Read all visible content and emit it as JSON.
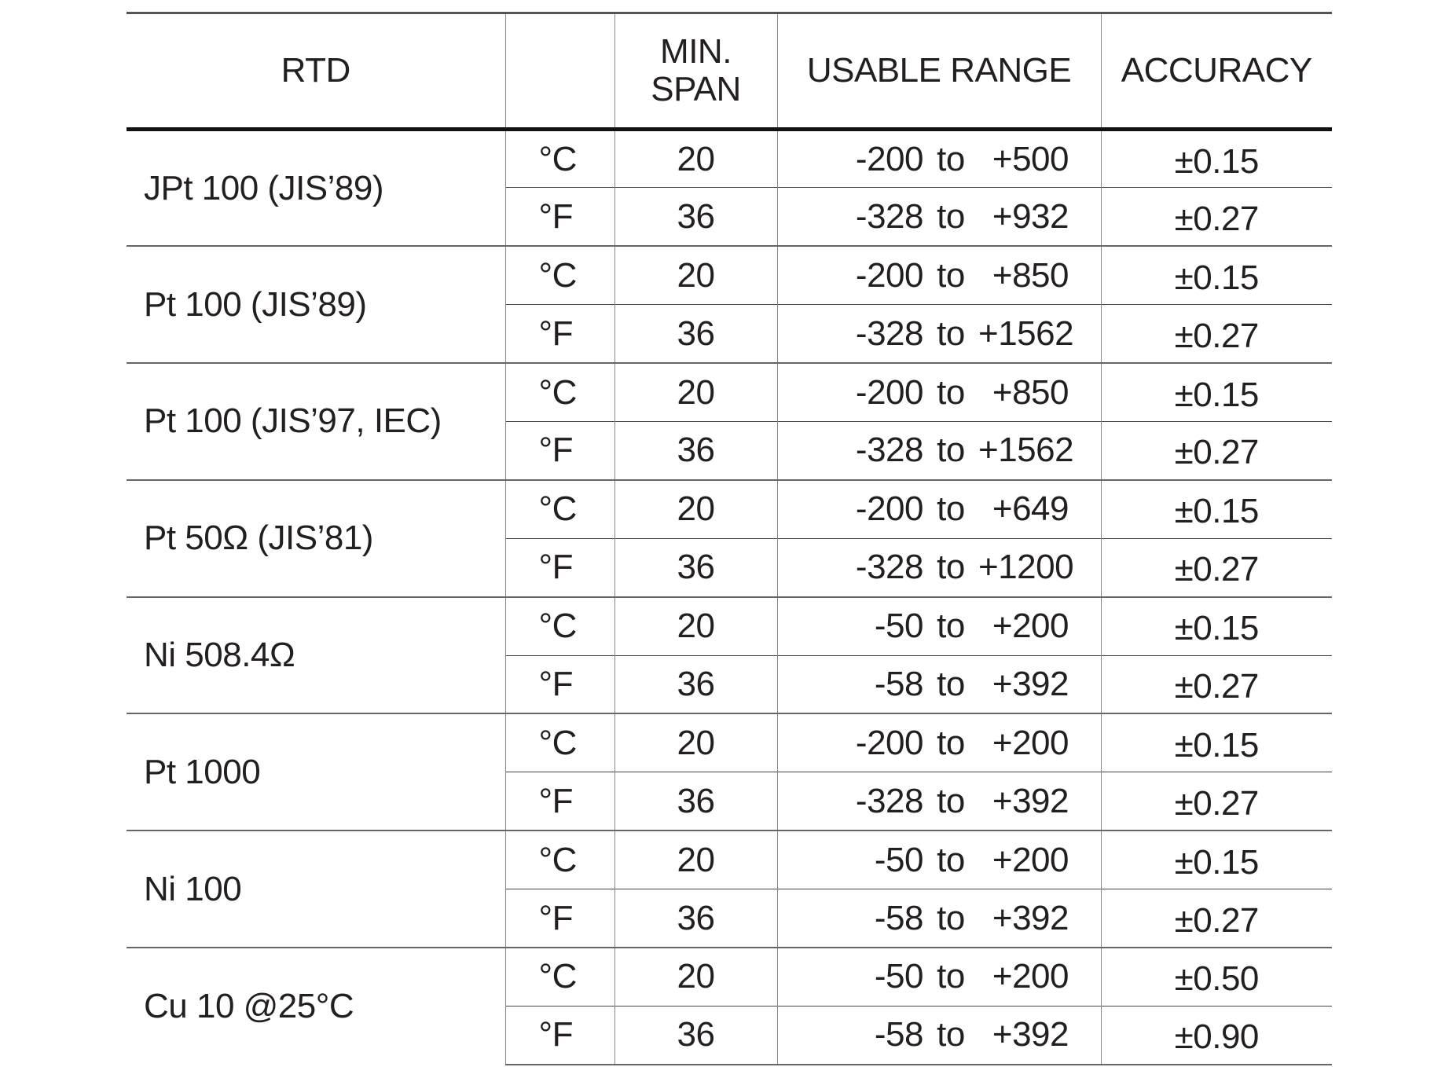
{
  "headers": {
    "rtd": "RTD",
    "unit": "",
    "min_span_1": "MIN.",
    "min_span_2": "SPAN",
    "range": "USABLE RANGE",
    "accuracy": "ACCURACY"
  },
  "rows": [
    {
      "rtd": "JPt 100 (JIS’89)",
      "c": {
        "unit": "°C",
        "span": "20",
        "from": "-200",
        "to_word": "to",
        "to": "+500",
        "acc": "±0.15"
      },
      "f": {
        "unit": "°F",
        "span": "36",
        "from": "-328",
        "to_word": "to",
        "to": "+932",
        "acc": "±0.27"
      }
    },
    {
      "rtd": "Pt 100 (JIS’89)",
      "c": {
        "unit": "°C",
        "span": "20",
        "from": "-200",
        "to_word": "to",
        "to": "+850",
        "acc": "±0.15"
      },
      "f": {
        "unit": "°F",
        "span": "36",
        "from": "-328",
        "to_word": "to",
        "to": "+1562",
        "acc": "±0.27"
      }
    },
    {
      "rtd": "Pt 100 (JIS’97, IEC)",
      "c": {
        "unit": "°C",
        "span": "20",
        "from": "-200",
        "to_word": "to",
        "to": "+850",
        "acc": "±0.15"
      },
      "f": {
        "unit": "°F",
        "span": "36",
        "from": "-328",
        "to_word": "to",
        "to": "+1562",
        "acc": "±0.27"
      }
    },
    {
      "rtd": "Pt 50Ω (JIS’81)",
      "c": {
        "unit": "°C",
        "span": "20",
        "from": "-200",
        "to_word": "to",
        "to": "+649",
        "acc": "±0.15"
      },
      "f": {
        "unit": "°F",
        "span": "36",
        "from": "-328",
        "to_word": "to",
        "to": "+1200",
        "acc": "±0.27"
      }
    },
    {
      "rtd": "Ni 508.4Ω",
      "c": {
        "unit": "°C",
        "span": "20",
        "from": "-50",
        "to_word": "to",
        "to": "+200",
        "acc": "±0.15"
      },
      "f": {
        "unit": "°F",
        "span": "36",
        "from": "-58",
        "to_word": "to",
        "to": "+392",
        "acc": "±0.27"
      }
    },
    {
      "rtd": "Pt 1000",
      "c": {
        "unit": "°C",
        "span": "20",
        "from": "-200",
        "to_word": "to",
        "to": "+200",
        "acc": "±0.15"
      },
      "f": {
        "unit": "°F",
        "span": "36",
        "from": "-328",
        "to_word": "to",
        "to": "+392",
        "acc": "±0.27"
      }
    },
    {
      "rtd": "Ni 100",
      "c": {
        "unit": "°C",
        "span": "20",
        "from": "-50",
        "to_word": "to",
        "to": "+200",
        "acc": "±0.15"
      },
      "f": {
        "unit": "°F",
        "span": "36",
        "from": "-58",
        "to_word": "to",
        "to": "+392",
        "acc": "±0.27"
      }
    },
    {
      "rtd": "Cu 10 @25°C",
      "c": {
        "unit": "°C",
        "span": "20",
        "from": "-50",
        "to_word": "to",
        "to": "+200",
        "acc": "±0.50"
      },
      "f": {
        "unit": "°F",
        "span": "36",
        "from": "-58",
        "to_word": "to",
        "to": "+392",
        "acc": "±0.90"
      }
    }
  ]
}
